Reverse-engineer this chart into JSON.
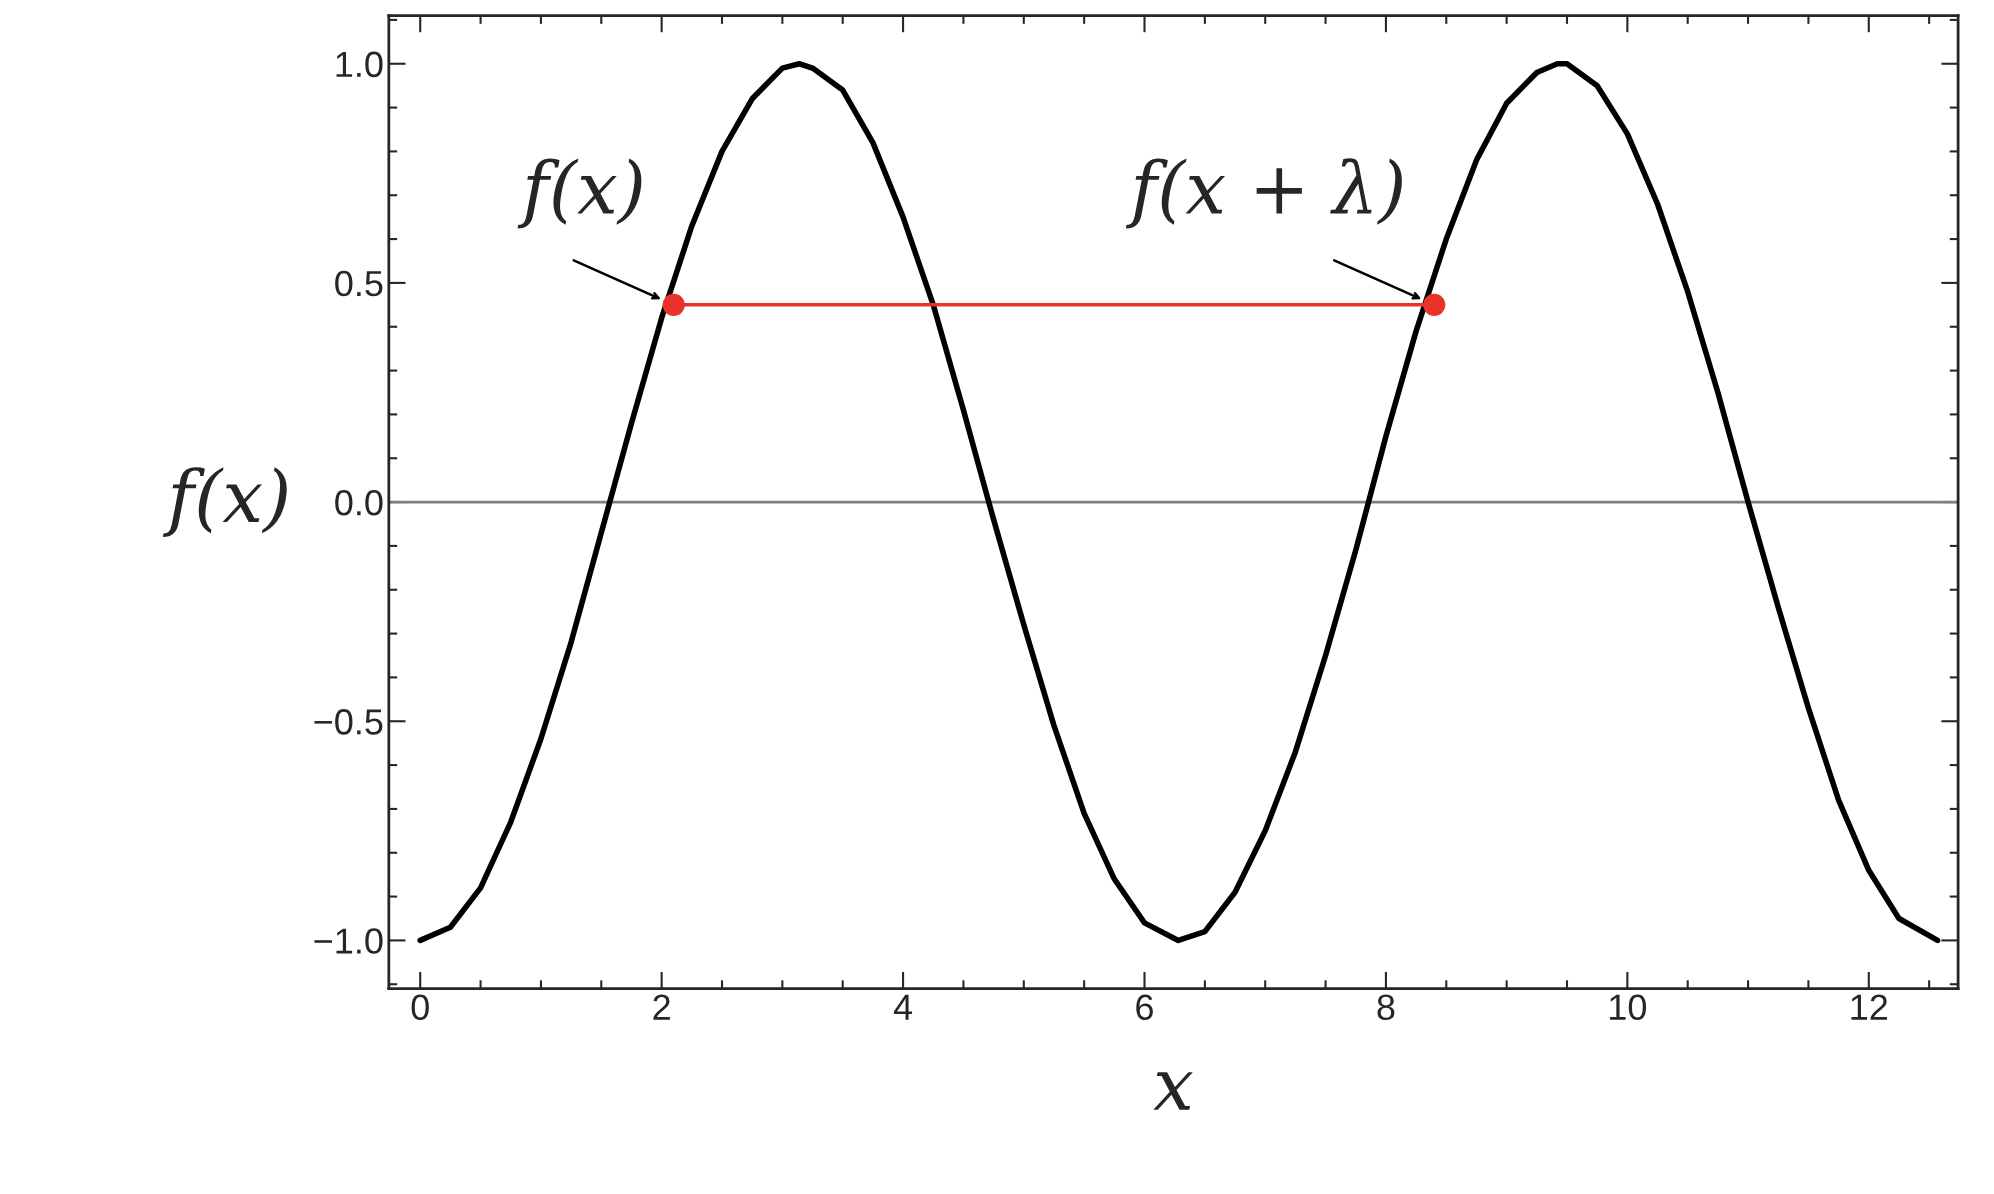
{
  "chart_data": {
    "type": "line",
    "xlabel": "x",
    "ylabel": "f(x)",
    "xlim": [
      -0.26,
      12.74
    ],
    "ylim": [
      -1.11,
      1.11
    ],
    "xticks": [
      0,
      2,
      4,
      6,
      8,
      10,
      12
    ],
    "yticks": [
      {
        "value": -1.0,
        "label": "−1.0"
      },
      {
        "value": -0.5,
        "label": "−0.5"
      },
      {
        "value": 0.0,
        "label": "0.0"
      },
      {
        "value": 0.5,
        "label": "0.5"
      },
      {
        "value": 1.0,
        "label": "1.0"
      }
    ],
    "grid": false,
    "ref_lines": [
      {
        "axis": "y",
        "value": 0,
        "color": "#808080"
      }
    ],
    "series": [
      {
        "color": "#000000",
        "marker": "none",
        "x": [
          0,
          0.25,
          0.5,
          0.75,
          1.0,
          1.25,
          1.5,
          1.75,
          2.0,
          2.25,
          2.5,
          2.75,
          3.0,
          3.14,
          3.25,
          3.5,
          3.75,
          4.0,
          4.25,
          4.5,
          4.75,
          5.0,
          5.25,
          5.5,
          5.75,
          6.0,
          6.28,
          6.5,
          6.75,
          7.0,
          7.25,
          7.5,
          7.75,
          8.0,
          8.25,
          8.5,
          8.75,
          9.0,
          9.25,
          9.42,
          9.5,
          9.75,
          10.0,
          10.25,
          10.5,
          10.75,
          11.0,
          11.25,
          11.5,
          11.75,
          12.0,
          12.25,
          12.57
        ],
        "values": [
          -1.0,
          -0.97,
          -0.88,
          -0.73,
          -0.54,
          -0.32,
          -0.07,
          0.18,
          0.42,
          0.63,
          0.8,
          0.92,
          0.99,
          1.0,
          0.99,
          0.94,
          0.82,
          0.65,
          0.45,
          0.21,
          -0.04,
          -0.28,
          -0.51,
          -0.71,
          -0.86,
          -0.96,
          -1.0,
          -0.98,
          -0.89,
          -0.75,
          -0.57,
          -0.35,
          -0.11,
          0.15,
          0.39,
          0.6,
          0.78,
          0.91,
          0.98,
          1.0,
          1.0,
          0.95,
          0.84,
          0.68,
          0.48,
          0.25,
          0.0,
          -0.24,
          -0.47,
          -0.68,
          -0.84,
          -0.95,
          -1.0
        ]
      },
      {
        "color": "#e8322a",
        "marker": "circle",
        "x": [
          2.1,
          8.4
        ],
        "values": [
          0.45,
          0.45
        ]
      }
    ],
    "annotations": [
      {
        "text": "f(x)",
        "x": 2.1,
        "y": 0.45
      },
      {
        "text": "f(x + λ)",
        "x": 8.4,
        "y": 0.45
      }
    ]
  }
}
